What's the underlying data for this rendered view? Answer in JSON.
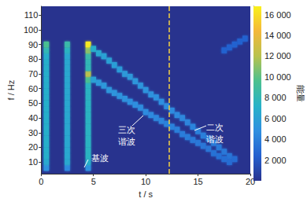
{
  "chart_data": {
    "type": "heatmap",
    "x_label": "t / s",
    "y_label": "f / Hz",
    "xlim": [
      0,
      20
    ],
    "xticks": [
      0,
      5,
      10,
      15,
      20
    ],
    "ylim": [
      2,
      116
    ],
    "yticks": [
      10,
      20,
      30,
      40,
      50,
      60,
      70,
      80,
      90,
      100,
      110
    ],
    "grid": false,
    "cell_size": [
      0.5,
      4
    ],
    "cells": [
      [
        0.5,
        6,
        5000
      ],
      [
        0.5,
        10,
        6500
      ],
      [
        0.5,
        14,
        7000
      ],
      [
        0.5,
        18,
        7000
      ],
      [
        0.5,
        22,
        7000
      ],
      [
        0.5,
        26,
        7000
      ],
      [
        0.5,
        30,
        7000
      ],
      [
        0.5,
        34,
        7000
      ],
      [
        0.5,
        38,
        7000
      ],
      [
        0.5,
        42,
        7000
      ],
      [
        0.5,
        46,
        7000
      ],
      [
        0.5,
        50,
        7000
      ],
      [
        0.5,
        54,
        7000
      ],
      [
        0.5,
        58,
        7000
      ],
      [
        0.5,
        62,
        7000
      ],
      [
        0.5,
        66,
        7000
      ],
      [
        0.5,
        70,
        7000
      ],
      [
        0.5,
        74,
        7000
      ],
      [
        0.5,
        78,
        7000
      ],
      [
        0.5,
        82,
        7000
      ],
      [
        0.5,
        86,
        8000
      ],
      [
        0.5,
        90,
        9500
      ],
      [
        2.5,
        6,
        4500
      ],
      [
        2.5,
        10,
        6500
      ],
      [
        2.5,
        14,
        6500
      ],
      [
        2.5,
        18,
        6500
      ],
      [
        2.5,
        22,
        6500
      ],
      [
        2.5,
        26,
        6500
      ],
      [
        2.5,
        30,
        6500
      ],
      [
        2.5,
        34,
        6500
      ],
      [
        2.5,
        38,
        6500
      ],
      [
        2.5,
        42,
        6500
      ],
      [
        2.5,
        46,
        6500
      ],
      [
        2.5,
        50,
        6500
      ],
      [
        2.5,
        54,
        6500
      ],
      [
        2.5,
        58,
        6500
      ],
      [
        2.5,
        62,
        6500
      ],
      [
        2.5,
        66,
        6500
      ],
      [
        2.5,
        70,
        6500
      ],
      [
        2.5,
        74,
        6500
      ],
      [
        2.5,
        78,
        6500
      ],
      [
        2.5,
        82,
        6500
      ],
      [
        2.5,
        86,
        7500
      ],
      [
        2.5,
        90,
        8500
      ],
      [
        4.5,
        6,
        5000
      ],
      [
        4.5,
        10,
        7000
      ],
      [
        4.5,
        14,
        7500
      ],
      [
        4.5,
        18,
        7500
      ],
      [
        4.5,
        22,
        7500
      ],
      [
        4.5,
        26,
        7500
      ],
      [
        4.5,
        30,
        7500
      ],
      [
        4.5,
        34,
        7500
      ],
      [
        4.5,
        38,
        7500
      ],
      [
        4.5,
        42,
        7500
      ],
      [
        4.5,
        46,
        7500
      ],
      [
        4.5,
        50,
        7500
      ],
      [
        4.5,
        54,
        7500
      ],
      [
        4.5,
        58,
        7500
      ],
      [
        4.5,
        62,
        7500
      ],
      [
        4.5,
        66,
        9500
      ],
      [
        4.5,
        70,
        12000
      ],
      [
        4.5,
        74,
        8000
      ],
      [
        4.5,
        78,
        8000
      ],
      [
        4.5,
        82,
        8500
      ],
      [
        4.5,
        86,
        11000
      ],
      [
        4.5,
        90,
        16500
      ],
      [
        5.0,
        87,
        7000
      ],
      [
        5.5,
        84,
        6500
      ],
      [
        6.0,
        82,
        6000
      ],
      [
        6.5,
        79,
        6000
      ],
      [
        7.0,
        76,
        5800
      ],
      [
        7.5,
        73,
        5600
      ],
      [
        8.0,
        70,
        5500
      ],
      [
        8.5,
        68,
        5400
      ],
      [
        9.0,
        65,
        5300
      ],
      [
        9.5,
        62,
        5200
      ],
      [
        10.0,
        59,
        5100
      ],
      [
        10.5,
        56,
        5000
      ],
      [
        11.0,
        54,
        4900
      ],
      [
        11.5,
        51,
        4800
      ],
      [
        12.0,
        48,
        4700
      ],
      [
        12.5,
        45,
        4600
      ],
      [
        13.0,
        42,
        4500
      ],
      [
        13.5,
        40,
        4400
      ],
      [
        14.0,
        37,
        4300
      ],
      [
        14.5,
        34,
        4200
      ],
      [
        15.0,
        31,
        4100
      ],
      [
        15.5,
        28,
        4000
      ],
      [
        16.0,
        26,
        3900
      ],
      [
        16.5,
        23,
        3800
      ],
      [
        17.0,
        20,
        3700
      ],
      [
        17.5,
        17,
        3600
      ],
      [
        18.0,
        14,
        3400
      ],
      [
        18.5,
        12,
        3000
      ],
      [
        5.0,
        66,
        6000
      ],
      [
        5.5,
        64,
        5500
      ],
      [
        6.0,
        62,
        5400
      ],
      [
        6.5,
        59,
        5300
      ],
      [
        7.0,
        57,
        5200
      ],
      [
        7.5,
        55,
        5100
      ],
      [
        8.0,
        53,
        5000
      ],
      [
        8.5,
        51,
        4900
      ],
      [
        9.0,
        49,
        4800
      ],
      [
        9.5,
        47,
        4700
      ],
      [
        10.0,
        44,
        4600
      ],
      [
        10.5,
        42,
        4500
      ],
      [
        11.0,
        40,
        4400
      ],
      [
        11.5,
        38,
        4300
      ],
      [
        12.0,
        36,
        4200
      ],
      [
        12.5,
        34,
        4100
      ],
      [
        13.0,
        32,
        4000
      ],
      [
        13.5,
        29,
        3900
      ],
      [
        14.0,
        27,
        3800
      ],
      [
        14.5,
        25,
        3700
      ],
      [
        15.0,
        23,
        3600
      ],
      [
        15.5,
        21,
        3500
      ],
      [
        16.0,
        19,
        3400
      ],
      [
        16.5,
        16,
        3300
      ],
      [
        17.0,
        14,
        3200
      ],
      [
        17.5,
        12,
        3100
      ],
      [
        18.0,
        10,
        3000
      ],
      [
        17.5,
        86,
        2500
      ],
      [
        18.0,
        88,
        2500
      ],
      [
        18.5,
        90,
        2500
      ],
      [
        19.0,
        92,
        2500
      ],
      [
        19.5,
        94,
        2500
      ]
    ],
    "colorbar": {
      "label": "能量",
      "range": [
        0,
        16800
      ],
      "ticks": [
        {
          "value": 2000,
          "label": "2 000"
        },
        {
          "value": 4000,
          "label": "4 000"
        },
        {
          "value": 6000,
          "label": "6 000"
        },
        {
          "value": 8000,
          "label": "8 000"
        },
        {
          "value": 10000,
          "label": "10 000"
        },
        {
          "value": 12000,
          "label": "12 000"
        },
        {
          "value": 14000,
          "label": "14 000"
        },
        {
          "value": 16000,
          "label": "16 000"
        }
      ],
      "colors": [
        "#28338e",
        "#2460cf",
        "#2f8fe0",
        "#27b2c8",
        "#4cc08f",
        "#b9c24e",
        "#f4b83a",
        "#f9f01c"
      ]
    },
    "reference_line": {
      "x": 12.2,
      "color": "#f5d142",
      "line_style": "dashed"
    },
    "annotations": [
      {
        "text": "基波"
      },
      {
        "text": "三次\n谐波"
      },
      {
        "text": "二次\n谐波"
      }
    ]
  }
}
